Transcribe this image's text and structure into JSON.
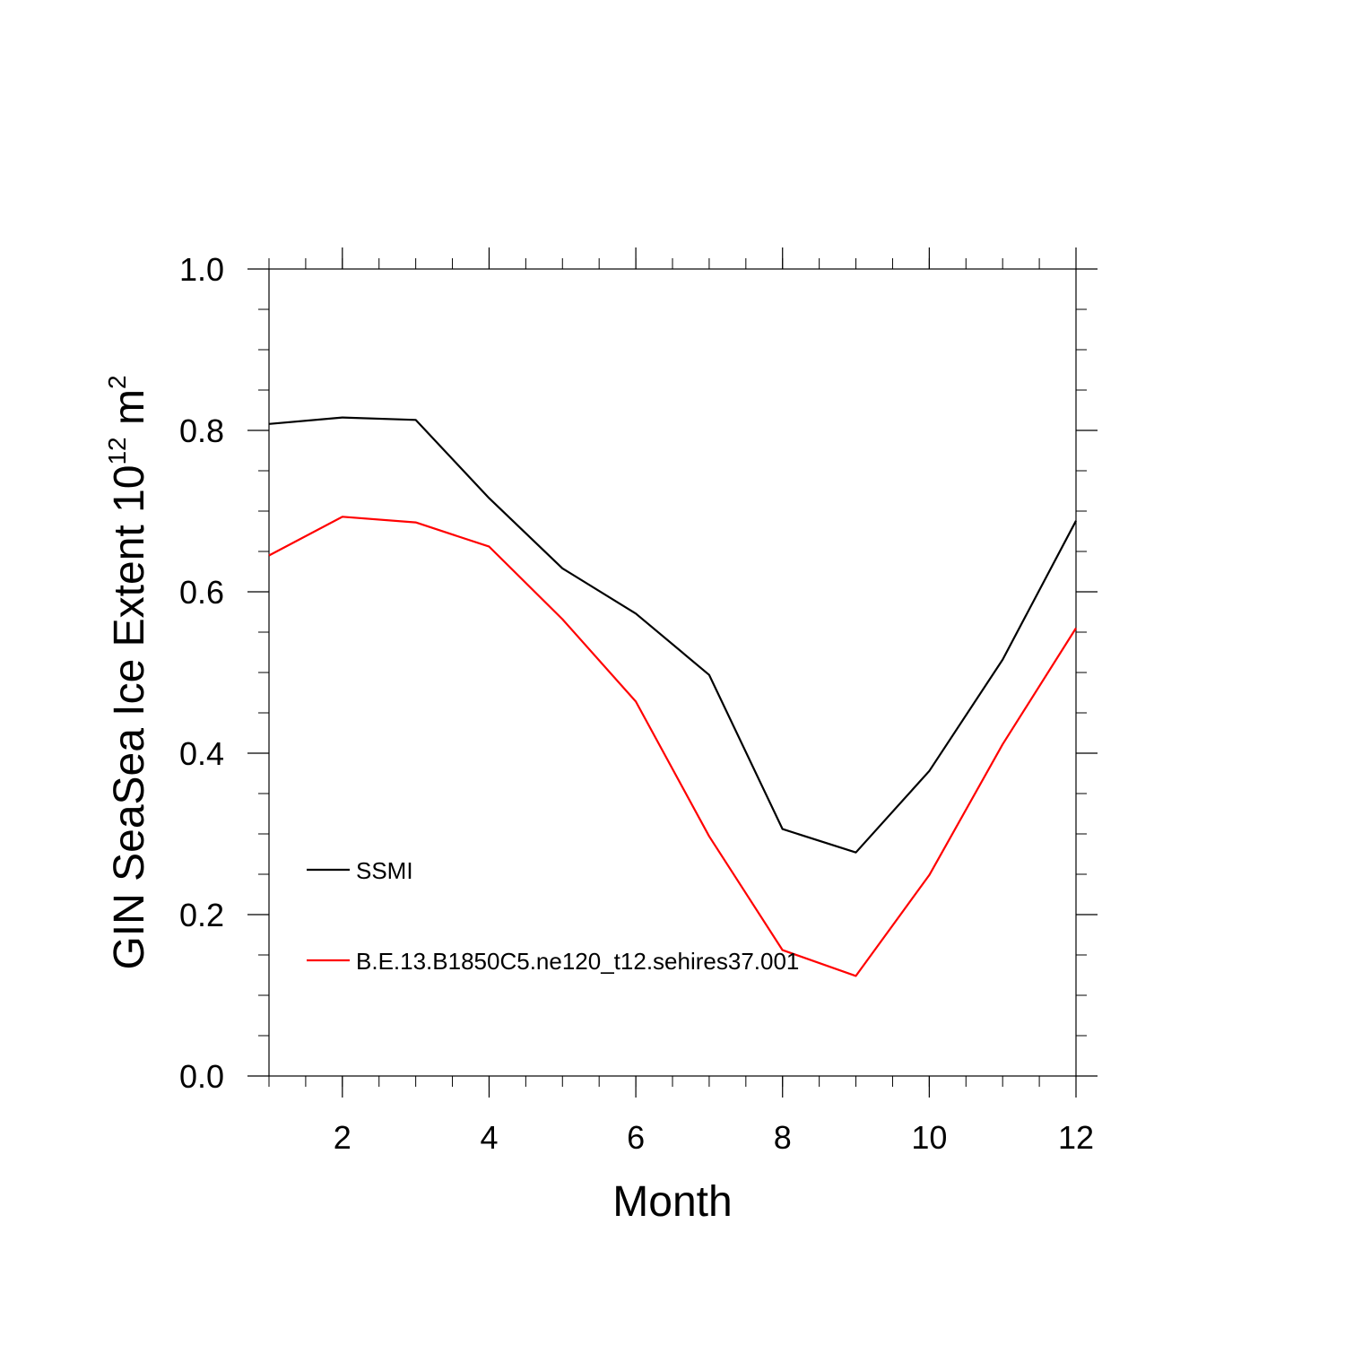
{
  "chart_data": {
    "type": "line",
    "xlabel": "Month",
    "ylabel_main": "GIN SeaSea Ice Extent 10",
    "ylabel_exp": "12",
    "ylabel_unit": " m",
    "ylabel_unit_exp": "2",
    "xlim": [
      1,
      12
    ],
    "ylim": [
      0.0,
      1.0
    ],
    "x_ticks": [
      2,
      4,
      6,
      8,
      10,
      12
    ],
    "x_tick_labels": [
      "2",
      "4",
      "6",
      "8",
      "10",
      "12"
    ],
    "y_ticks": [
      0.0,
      0.2,
      0.4,
      0.6,
      0.8,
      1.0
    ],
    "y_tick_labels": [
      "0.0",
      "0.2",
      "0.4",
      "0.6",
      "0.8",
      "1.0"
    ],
    "grid": false,
    "legend_placement": "lower-left",
    "x": [
      1,
      2,
      3,
      4,
      5,
      6,
      7,
      8,
      9,
      10,
      11,
      12
    ],
    "series": [
      {
        "name": "SSMI",
        "color": "#000000",
        "values": [
          0.808,
          0.816,
          0.813,
          0.716,
          0.629,
          0.573,
          0.497,
          0.306,
          0.277,
          0.378,
          0.516,
          0.688
        ]
      },
      {
        "name": "B.E.13.B1850C5.ne120_t12.sehires37.001",
        "color": "#ff0000",
        "values": [
          0.645,
          0.693,
          0.686,
          0.656,
          0.566,
          0.464,
          0.297,
          0.156,
          0.124,
          0.249,
          0.411,
          0.555
        ]
      }
    ]
  }
}
